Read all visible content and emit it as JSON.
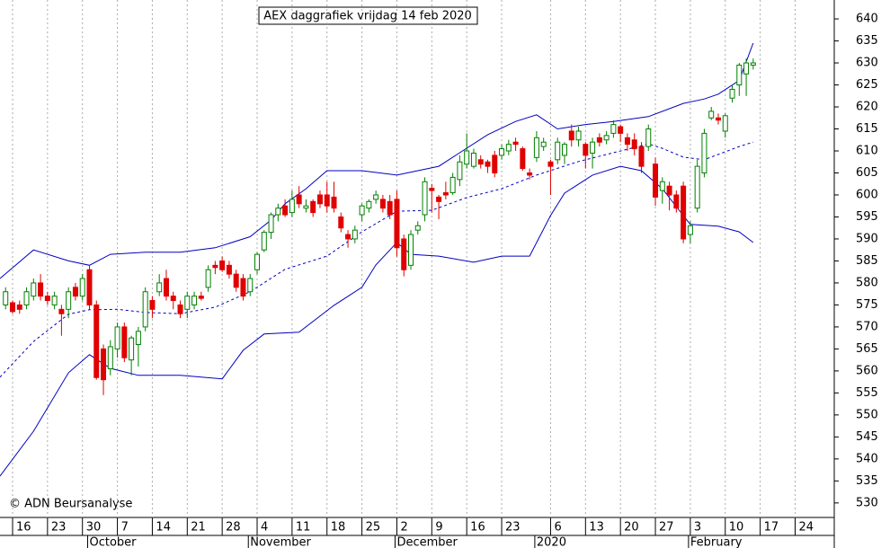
{
  "chart_data": {
    "type": "candlestick",
    "title": "AEX daggrafiek vrijdag 14 feb 2020",
    "credit": "© ADN Beursanalyse",
    "up_color": "#008000",
    "down_color": "#e00000",
    "band_color": "#0000c0",
    "grid": true,
    "x": [
      0,
      1,
      2,
      3,
      4,
      5,
      6,
      7,
      8,
      9,
      10,
      11,
      12,
      13,
      14,
      15,
      16,
      17,
      18,
      19,
      20,
      21,
      22,
      23,
      24,
      25,
      26,
      27,
      28,
      29,
      30,
      31,
      32,
      33,
      34,
      35,
      36,
      37,
      38,
      39,
      40,
      41,
      42,
      43,
      44,
      45,
      46,
      47,
      48,
      49,
      50,
      51,
      52,
      53,
      54,
      55,
      56,
      57,
      58,
      59,
      60,
      61,
      62,
      63,
      64,
      65,
      66,
      67,
      68,
      69,
      70,
      71,
      72,
      73,
      74,
      75,
      76,
      77,
      78,
      79,
      80,
      81,
      82,
      83,
      84,
      85,
      86,
      87,
      88,
      89,
      90,
      91,
      92,
      93,
      94,
      95,
      96,
      97,
      98,
      99,
      100,
      101,
      102,
      103,
      104,
      105,
      106,
      107
    ],
    "open": [
      575,
      575.5,
      575,
      575,
      577,
      580,
      577,
      575,
      574,
      574,
      579,
      577,
      583,
      575,
      565,
      560.5,
      565,
      570,
      562.5,
      566,
      570,
      576,
      578,
      581,
      577,
      575,
      574,
      575,
      577,
      579,
      584,
      585,
      584,
      582,
      581,
      578,
      583,
      587.5,
      591.5,
      595.5,
      597.5,
      596,
      600,
      597,
      598.5,
      600,
      600,
      599.5,
      595,
      591,
      590,
      595.5,
      597,
      599,
      599,
      598.5,
      599,
      590,
      584,
      592,
      595.5,
      601.5,
      599.5,
      600.5,
      600.5,
      603.5,
      607,
      606.5,
      608,
      607.5,
      609,
      609,
      610,
      612,
      610.5,
      605,
      608.5,
      611,
      607.5,
      608,
      609,
      614.5,
      612.5,
      611.5,
      609.5,
      613,
      612.5,
      614,
      615.5,
      613,
      612.5,
      611,
      611,
      607,
      601,
      602,
      600,
      602,
      591,
      597,
      605,
      617.5,
      617.5,
      614.5,
      622,
      625,
      627.5,
      629.5
    ],
    "high": [
      579,
      576,
      576,
      579,
      581,
      582,
      578,
      578,
      575,
      579,
      580,
      582,
      584,
      576,
      566,
      567,
      571,
      571,
      568,
      570,
      579,
      577,
      582,
      583,
      578,
      576,
      578,
      578,
      578,
      584,
      585,
      586,
      585,
      583,
      582,
      582,
      587,
      592,
      596,
      598,
      599,
      601,
      602,
      599,
      599,
      601,
      603,
      603,
      596,
      592,
      593,
      598,
      599,
      601,
      600,
      600,
      601,
      591,
      592,
      594,
      604,
      602.5,
      600,
      603,
      605,
      609,
      614,
      610.5,
      609,
      608,
      610,
      611.5,
      612.5,
      613,
      611,
      606,
      614.5,
      613,
      608,
      613,
      612,
      616,
      615.5,
      612,
      613,
      614,
      614.5,
      617,
      616,
      614,
      614,
      612,
      616,
      608.5,
      604,
      603,
      601,
      603,
      594,
      608,
      615,
      620,
      618.5,
      618.5,
      625,
      630,
      631,
      631
    ],
    "low": [
      574,
      573,
      573,
      574,
      576,
      576,
      575,
      574,
      568,
      572,
      576,
      576,
      574,
      558,
      554.5,
      559,
      563,
      562,
      559,
      561,
      569,
      572,
      577,
      576,
      574,
      572,
      572,
      574,
      576,
      578,
      582,
      582.5,
      581,
      578,
      576,
      577,
      582,
      587,
      590,
      594,
      595,
      595,
      597,
      596,
      595,
      597,
      596,
      596,
      591.5,
      588,
      589,
      594,
      596,
      598,
      596,
      594.5,
      586,
      581.5,
      583,
      591,
      594,
      596,
      594.5,
      599,
      600,
      602,
      606,
      606,
      606,
      605,
      604,
      608,
      609,
      610,
      605.5,
      603.5,
      607.5,
      610,
      600,
      607,
      607,
      611,
      611,
      606,
      606,
      611,
      611.5,
      613,
      612,
      610,
      609,
      605,
      610,
      597.5,
      598,
      596.5,
      596,
      589,
      589,
      596,
      604,
      617,
      616,
      613,
      621,
      622.5,
      622.5,
      628.5
    ],
    "close": [
      578,
      573.5,
      574,
      578,
      580,
      577,
      576,
      577,
      573,
      578,
      577,
      581,
      575,
      558.5,
      558,
      565.5,
      570,
      563,
      567.5,
      569,
      578,
      574,
      580,
      577,
      576,
      573,
      577,
      577,
      576.5,
      583,
      583.5,
      583,
      582,
      579,
      577,
      581,
      586.5,
      591.5,
      595.5,
      597,
      595.5,
      599,
      598,
      597.5,
      596,
      598,
      597.5,
      597,
      592.5,
      590,
      592,
      597.5,
      598.5,
      600,
      597,
      595.5,
      588,
      583,
      591,
      593,
      603,
      601,
      598.5,
      600,
      604,
      607.5,
      610,
      609.5,
      607,
      606.5,
      605,
      610.5,
      611.5,
      611.5,
      606,
      604.5,
      613,
      612,
      606.5,
      612,
      611.5,
      612.5,
      614.5,
      609,
      612,
      612,
      613.5,
      616,
      614,
      611.5,
      610.5,
      606.5,
      615,
      599.5,
      603,
      600,
      597,
      590,
      593,
      606.5,
      614,
      619,
      617,
      618,
      624,
      629.5,
      630,
      630
    ],
    "lines": [
      {
        "color": "#0000c0",
        "dashed": false,
        "x": [
          -0.8,
          4,
          9,
          12,
          15,
          20,
          25,
          30,
          35,
          38,
          40,
          43,
          46,
          48,
          51,
          56,
          59,
          62,
          65,
          69,
          73,
          76,
          79,
          83,
          87,
          92,
          97,
          100,
          102,
          105,
          107
        ],
        "values": [
          581,
          587.5,
          585,
          584,
          586.5,
          587,
          587,
          588,
          590.5,
          594.3,
          598,
          601.4,
          605.5,
          605.5,
          605.5,
          604.5,
          605.5,
          606.5,
          609.6,
          613.7,
          616.7,
          618.2,
          615,
          616,
          616.7,
          617.8,
          620.8,
          621.8,
          622.9,
          626,
          634.5
        ]
      },
      {
        "color": "#0000c0",
        "dashed": true,
        "x": [
          -0.8,
          4,
          9,
          12,
          16,
          20,
          25,
          30,
          35,
          40,
          46,
          51,
          56,
          61,
          66,
          71,
          76,
          82,
          87,
          92,
          94,
          97,
          100,
          102,
          105,
          107
        ],
        "values": [
          558.6,
          566.7,
          572.9,
          573.9,
          574,
          573.3,
          573,
          574.5,
          578,
          583.1,
          586.1,
          591.6,
          596.3,
          596.5,
          599.4,
          601.4,
          604.5,
          607.6,
          609.6,
          611.6,
          610.6,
          608.6,
          608,
          609.2,
          611,
          612
        ]
      },
      {
        "color": "#0000c0",
        "dashed": false,
        "x": [
          -0.8,
          4,
          9,
          12,
          15,
          19,
          25,
          31,
          34,
          37,
          42,
          47,
          51,
          53,
          56,
          58,
          62,
          67,
          71,
          75,
          78,
          80,
          84,
          88,
          91,
          94,
          97,
          98,
          102,
          105,
          107
        ],
        "values": [
          536.1,
          546.3,
          559.6,
          563.7,
          560.6,
          559,
          559,
          558.2,
          564.7,
          568.4,
          568.8,
          574.9,
          579,
          584.1,
          589.2,
          586.5,
          586.1,
          584.7,
          586.1,
          586.1,
          595.3,
          600.4,
          604.5,
          606.5,
          605.5,
          601.4,
          595.3,
          593.3,
          592.9,
          591.6,
          589.2
        ]
      }
    ],
    "xlim": [
      -0.8,
      118.6
    ],
    "ylim": [
      526.7,
      644.3
    ],
    "yticks": [
      530,
      535,
      540,
      545,
      550,
      555,
      560,
      565,
      570,
      575,
      580,
      585,
      590,
      595,
      600,
      605,
      610,
      615,
      620,
      625,
      630,
      635,
      640
    ],
    "xticks": [
      {
        "value": 1,
        "label": "16"
      },
      {
        "value": 6,
        "label": "23"
      },
      {
        "value": 11,
        "label": "30"
      },
      {
        "value": 16,
        "label": "7"
      },
      {
        "value": 21,
        "label": "14"
      },
      {
        "value": 26,
        "label": "21"
      },
      {
        "value": 31,
        "label": "28"
      },
      {
        "value": 36,
        "label": "4"
      },
      {
        "value": 41,
        "label": "11"
      },
      {
        "value": 46,
        "label": "18"
      },
      {
        "value": 51,
        "label": "25"
      },
      {
        "value": 56,
        "label": "2"
      },
      {
        "value": 61,
        "label": "9"
      },
      {
        "value": 66,
        "label": "16"
      },
      {
        "value": 71,
        "label": "23"
      },
      {
        "value": 78,
        "label": "6"
      },
      {
        "value": 83,
        "label": "13"
      },
      {
        "value": 88,
        "label": "20"
      },
      {
        "value": 93,
        "label": "27"
      },
      {
        "value": 98,
        "label": "3"
      },
      {
        "value": 103,
        "label": "10"
      },
      {
        "value": 108,
        "label": "17"
      },
      {
        "value": 113,
        "label": "24"
      }
    ],
    "months": [
      {
        "value": 12,
        "label": "October"
      },
      {
        "value": 35,
        "label": "November"
      },
      {
        "value": 56,
        "label": "December"
      },
      {
        "value": 76,
        "label": "2020"
      },
      {
        "value": 98,
        "label": "February"
      }
    ]
  }
}
